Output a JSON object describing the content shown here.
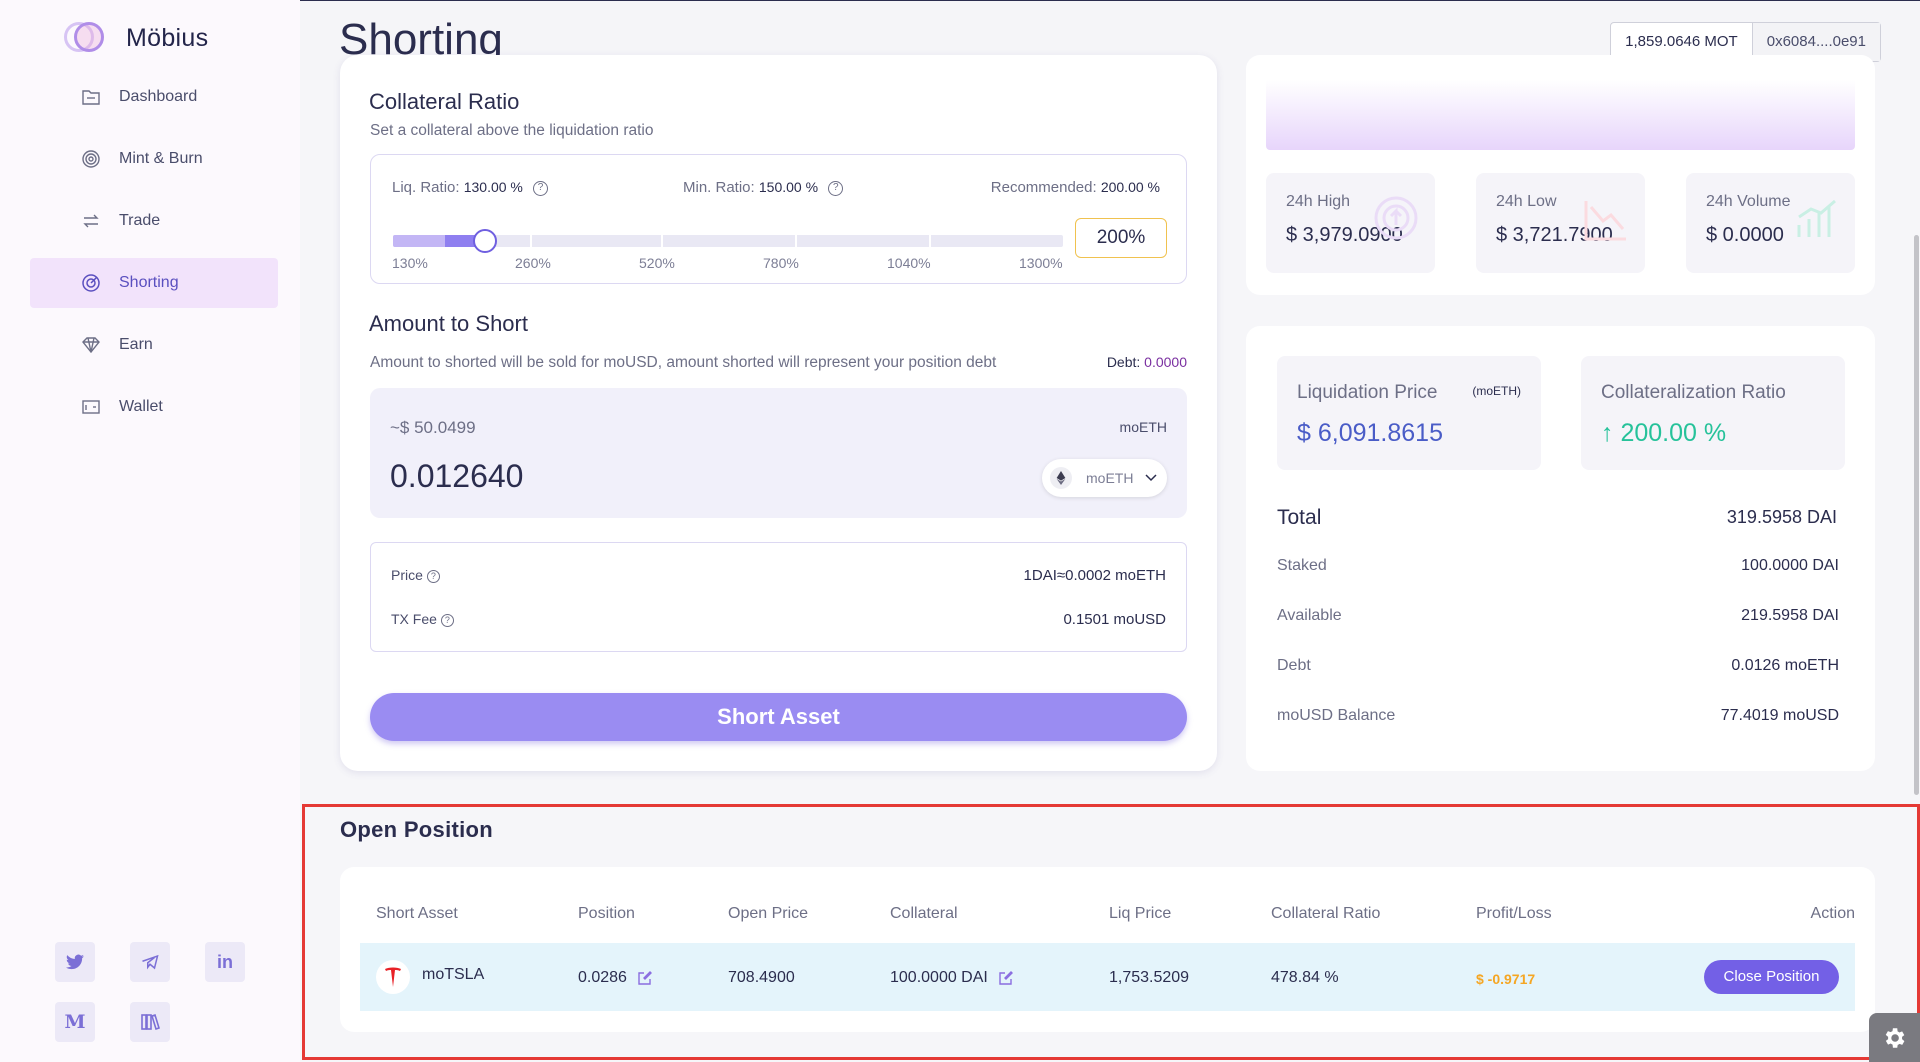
{
  "app": {
    "name": "Möbius"
  },
  "sidebar": {
    "items": [
      {
        "label": "Dashboard",
        "icon": "folder-icon"
      },
      {
        "label": "Mint & Burn",
        "icon": "target-icon"
      },
      {
        "label": "Trade",
        "icon": "swap-icon"
      },
      {
        "label": "Shorting",
        "icon": "crosshair-icon",
        "active": true
      },
      {
        "label": "Earn",
        "icon": "diamond-icon"
      },
      {
        "label": "Wallet",
        "icon": "wallet-icon"
      }
    ],
    "social": [
      {
        "name": "twitter-icon",
        "glyph": "🐦"
      },
      {
        "name": "telegram-icon",
        "glyph": "✈"
      },
      {
        "name": "linkedin-icon",
        "glyph": "in"
      },
      {
        "name": "medium-icon",
        "glyph": "M"
      },
      {
        "name": "docs-icon",
        "glyph": "📚"
      }
    ]
  },
  "header": {
    "title": "Shorting",
    "balance": "1,859.0646 MOT",
    "address": "0x6084....0e91"
  },
  "collateral": {
    "title": "Collateral Ratio",
    "subtitle": "Set a collateral above the liquidation ratio",
    "liq_label": "Liq. Ratio:",
    "liq_value": "130.00 %",
    "min_label": "Min. Ratio:",
    "min_value": "150.00 %",
    "rec_label": "Recommended:",
    "rec_value": "200.00 %",
    "marks": [
      "130%",
      "260%",
      "520%",
      "780%",
      "1040%",
      "1300%"
    ],
    "slider_position": 0.137,
    "input_value": "200%"
  },
  "amount": {
    "title": "Amount to Short",
    "subtitle": "Amount to shorted will be sold for moUSD, amount shorted will represent your position debt",
    "debt_label": "Debt:",
    "debt_value": "0.0000",
    "usd_estimate": "~$ 50.0499",
    "token_top": "moETH",
    "value": "0.012640",
    "token_select": "moETH"
  },
  "info": {
    "price_label": "Price",
    "price_value": "1DAI≈0.0002 moETH",
    "fee_label": "TX Fee",
    "fee_value": "0.1501 moUSD"
  },
  "short_button": "Short Asset",
  "stats": [
    {
      "label": "24h High",
      "value": "$ 3,979.0900",
      "color": "#f0e6fb"
    },
    {
      "label": "24h Low",
      "value": "$ 3,721.7900",
      "color": "#fde7ea"
    },
    {
      "label": "24h Volume",
      "value": "$ 0.0000",
      "color": "#d8f4ee"
    }
  ],
  "metrics": {
    "liq_price_label": "Liquidation Price",
    "liq_price_unit": "(moETH)",
    "liq_price_value": "$ 6,091.8615",
    "coll_ratio_label": "Collateralization Ratio",
    "coll_ratio_value": "200.00 %",
    "coll_arrow": "↑"
  },
  "summary": [
    {
      "label": "Total",
      "value": "319.5958 DAI"
    },
    {
      "label": "Staked",
      "value": "100.0000 DAI"
    },
    {
      "label": "Available",
      "value": "219.5958 DAI"
    },
    {
      "label": "Debt",
      "value": "0.0126 moETH"
    },
    {
      "label": "moUSD Balance",
      "value": "77.4019 moUSD"
    }
  ],
  "open_position": {
    "title": "Open Position",
    "columns": [
      "Short Asset",
      "Position",
      "Open Price",
      "Collateral",
      "Liq Price",
      "Collateral Ratio",
      "Profit/Loss",
      "Action"
    ],
    "rows": [
      {
        "asset": "moTSLA",
        "position": "0.0286",
        "open_price": "708.4900",
        "collateral": "100.0000 DAI",
        "liq_price": "1,753.5209",
        "collateral_ratio": "478.84 %",
        "profit_loss": "$ -0.9717",
        "action": "Close Position"
      }
    ]
  },
  "colors": {
    "accent": "#7360e6",
    "positive": "#26c29a",
    "loss": "#f5a623",
    "liq_price": "#4a5cc7"
  }
}
